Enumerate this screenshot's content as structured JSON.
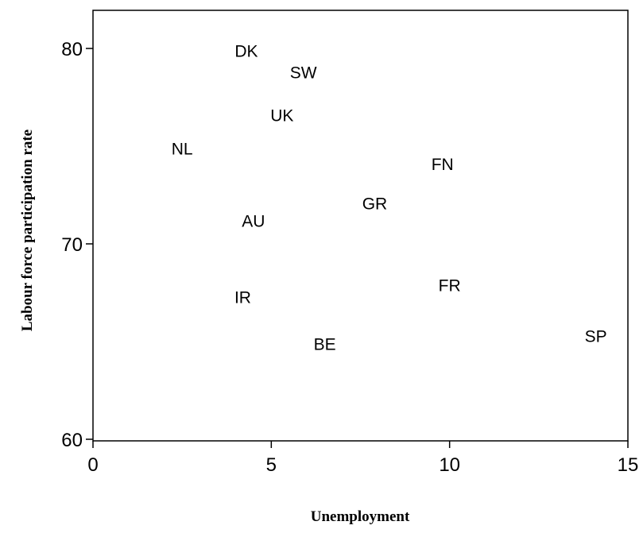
{
  "chart_data": {
    "type": "scatter",
    "title": "",
    "xlabel": "Unemployment",
    "ylabel": "Labour force participation rate",
    "xlim": [
      0,
      15
    ],
    "ylim": [
      60,
      82
    ],
    "xticks": [
      0,
      5,
      10,
      15
    ],
    "yticks": [
      60,
      70,
      80
    ],
    "grid": false,
    "legend": "none",
    "marker": "text-label",
    "points": [
      {
        "label": "DK",
        "x": 4.3,
        "y": 79.9
      },
      {
        "label": "SW",
        "x": 5.9,
        "y": 78.8
      },
      {
        "label": "UK",
        "x": 5.3,
        "y": 76.6
      },
      {
        "label": "NL",
        "x": 2.5,
        "y": 74.9
      },
      {
        "label": "FN",
        "x": 9.8,
        "y": 74.1
      },
      {
        "label": "GR",
        "x": 7.9,
        "y": 72.1
      },
      {
        "label": "AU",
        "x": 4.5,
        "y": 71.2
      },
      {
        "label": "FR",
        "x": 10.0,
        "y": 67.9
      },
      {
        "label": "IR",
        "x": 4.2,
        "y": 67.3
      },
      {
        "label": "BE",
        "x": 6.5,
        "y": 64.9
      },
      {
        "label": "SP",
        "x": 14.1,
        "y": 65.3
      }
    ]
  }
}
